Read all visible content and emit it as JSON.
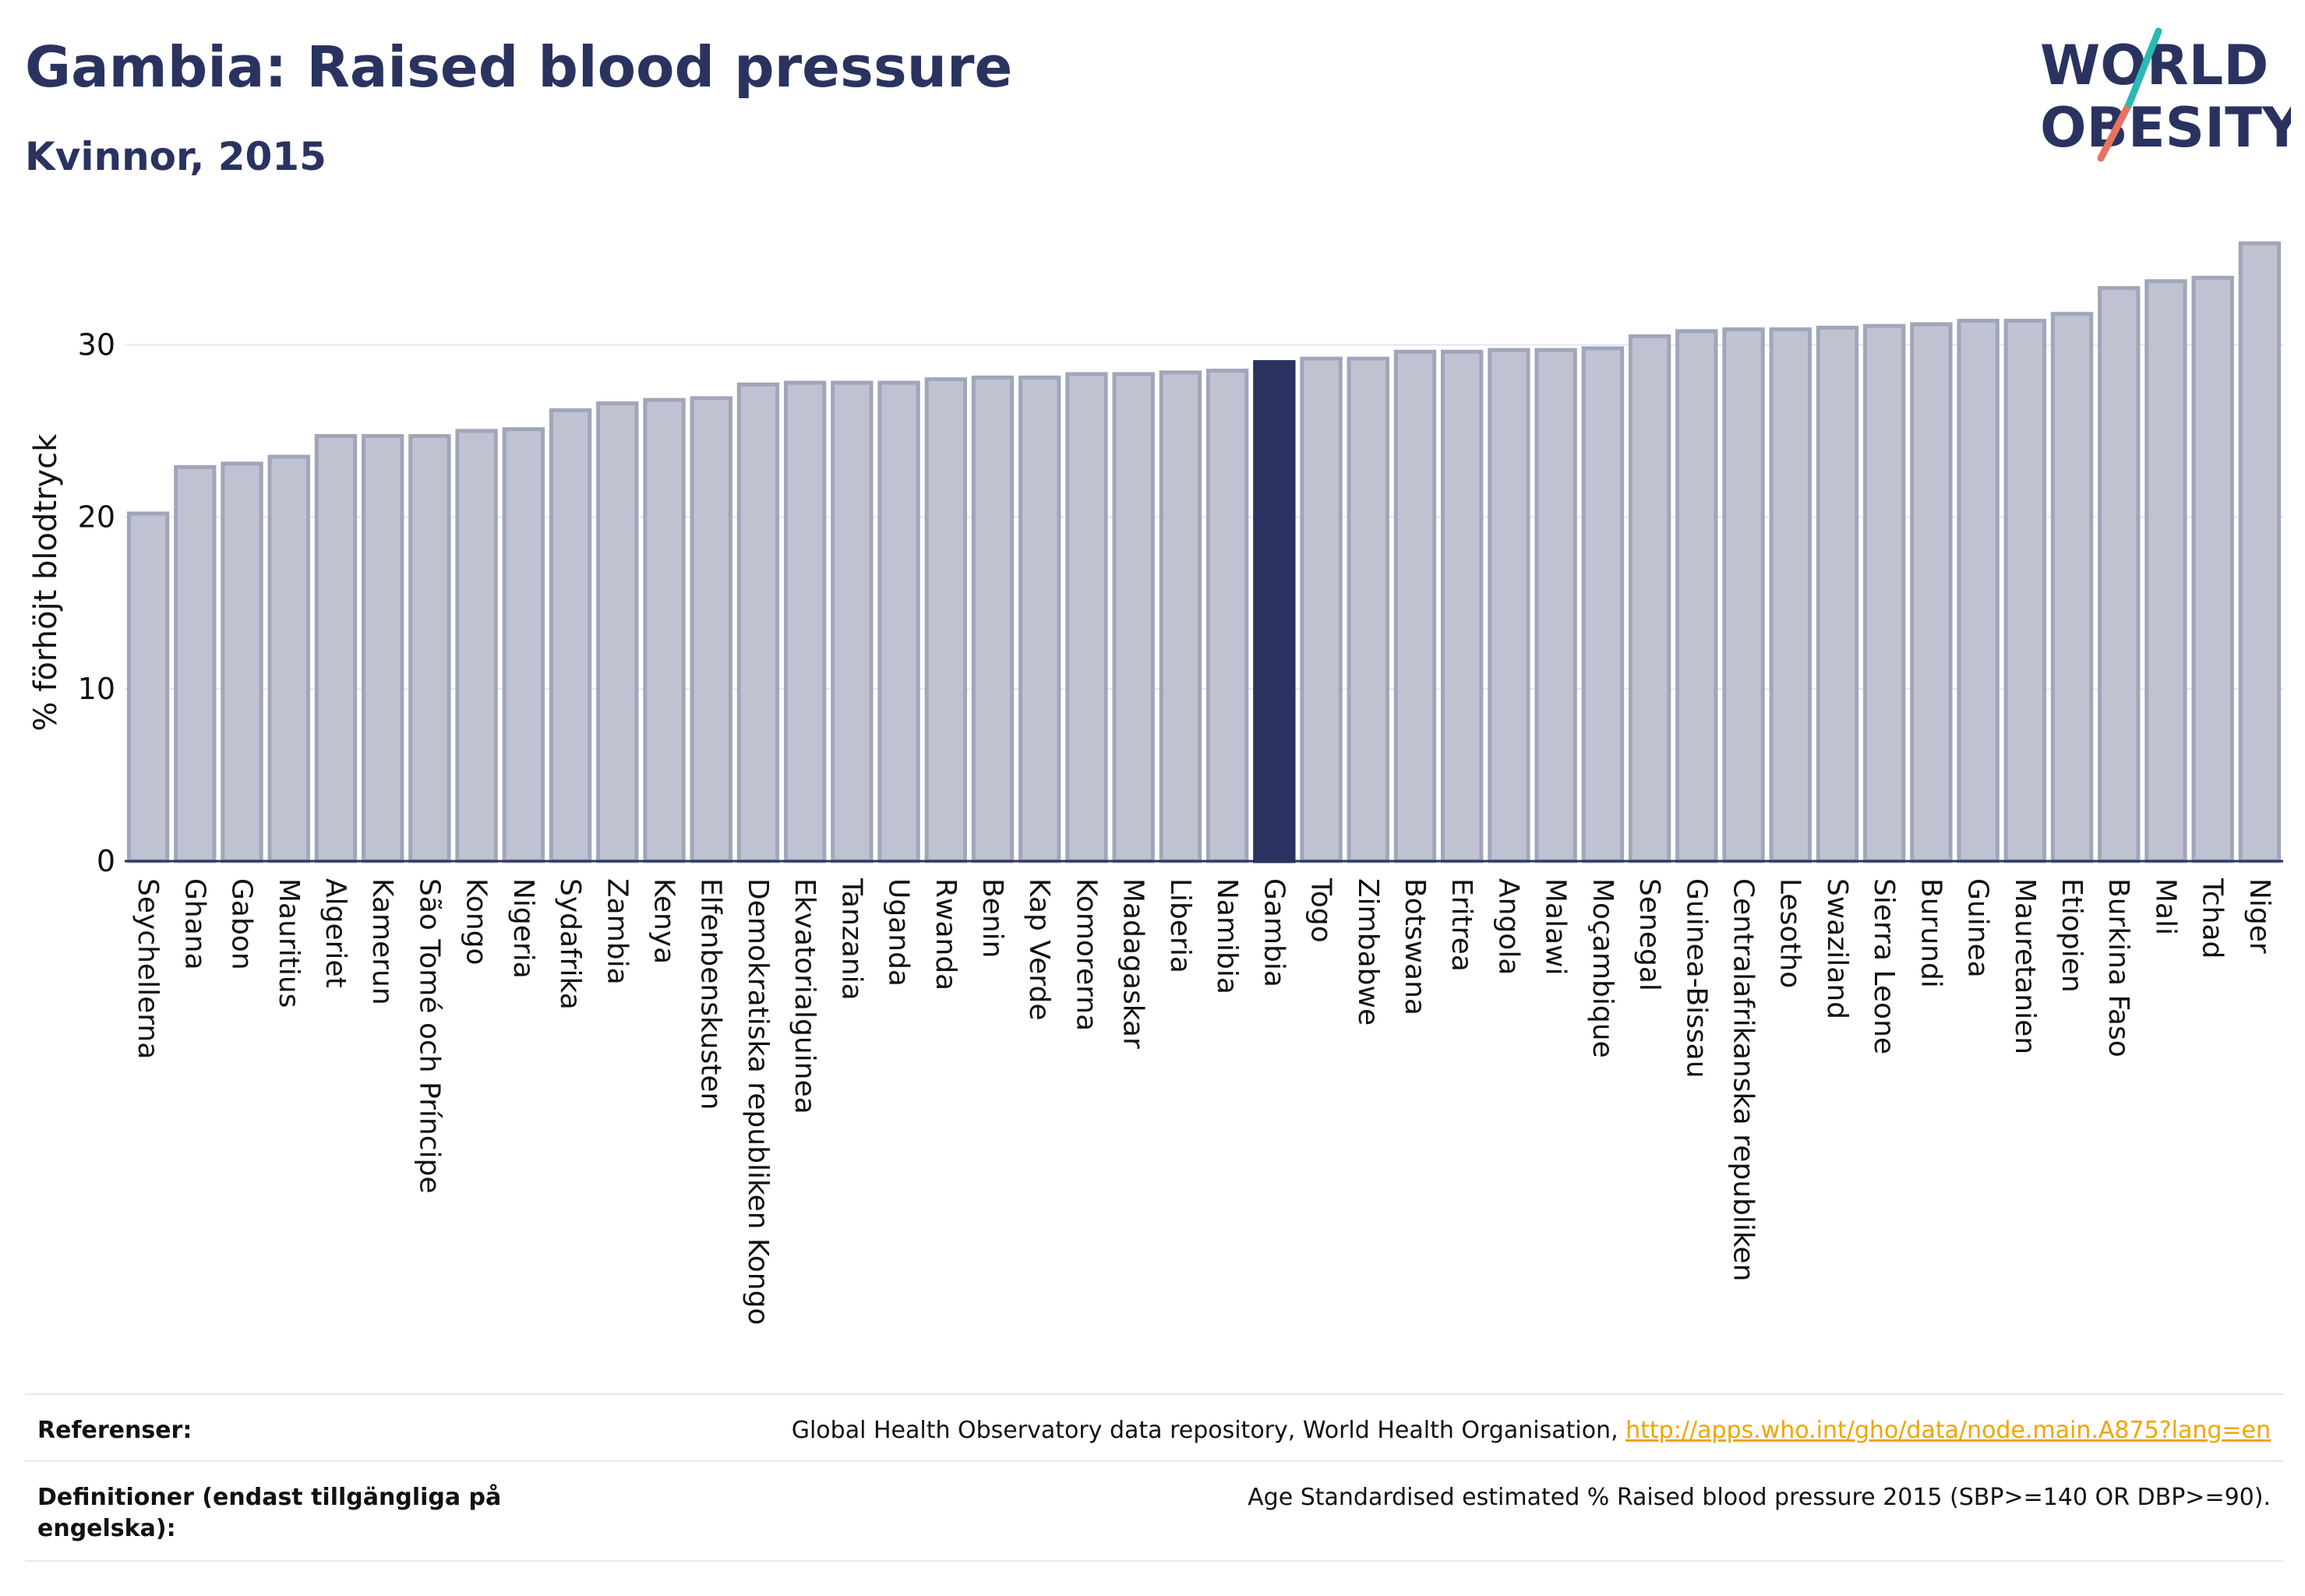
{
  "header": {
    "title": "Gambia: Raised blood pressure",
    "subtitle": "Kvinnor, 2015"
  },
  "logo": {
    "line1": "WORLD",
    "line2": "OBESITY"
  },
  "colors": {
    "bar": "#bfc3d1",
    "bar_stroke": "#a0a6ba",
    "highlight": "#2a3360",
    "axis": "#2a3360",
    "grid": "#e4e7ef",
    "link": "#f0a500"
  },
  "chart_data": {
    "type": "bar",
    "title": "Gambia: Raised blood pressure",
    "subtitle": "Kvinnor, 2015",
    "ylabel": "% förhöjt blodtryck",
    "xlabel": "",
    "ylim": [
      0,
      36
    ],
    "yticks": [
      0,
      10,
      20,
      30
    ],
    "grid": true,
    "highlight": "Gambia",
    "categories": [
      "Seychellerna",
      "Ghana",
      "Gabon",
      "Mauritius",
      "Algeriet",
      "Kamerun",
      "São Tomé och Príncipe",
      "Kongo",
      "Nigeria",
      "Sydafrika",
      "Zambia",
      "Kenya",
      "Elfenbenskusten",
      "Demokratiska republiken Kongo",
      "Ekvatorialguinea",
      "Tanzania",
      "Uganda",
      "Rwanda",
      "Benin",
      "Kap Verde",
      "Komorerna",
      "Madagaskar",
      "Liberia",
      "Namibia",
      "Gambia",
      "Togo",
      "Zimbabwe",
      "Botswana",
      "Eritrea",
      "Angola",
      "Malawi",
      "Moçambique",
      "Senegal",
      "Guinea-Bissau",
      "Centralafrikanska republiken",
      "Lesotho",
      "Swaziland",
      "Sierra Leone",
      "Burundi",
      "Guinea",
      "Mauretanien",
      "Etiopien",
      "Burkina Faso",
      "Mali",
      "Tchad",
      "Niger"
    ],
    "values": [
      20.2,
      22.9,
      23.1,
      23.5,
      24.7,
      24.7,
      24.7,
      25.0,
      25.1,
      26.2,
      26.6,
      26.8,
      26.9,
      27.7,
      27.8,
      27.8,
      27.8,
      28.0,
      28.1,
      28.1,
      28.3,
      28.3,
      28.4,
      28.5,
      29.0,
      29.2,
      29.2,
      29.6,
      29.6,
      29.7,
      29.7,
      29.8,
      30.5,
      30.8,
      30.9,
      30.9,
      31.0,
      31.1,
      31.2,
      31.4,
      31.4,
      31.8,
      33.3,
      33.7,
      33.9,
      35.9
    ]
  },
  "footer": {
    "references_label": "Referenser:",
    "references_text": "Global Health Observatory data repository, World Health Organisation, ",
    "references_link": "http://apps.who.int/gho/data/node.main.A875?lang=en",
    "definitions_label": "Definitioner (endast tillgängliga på engelska):",
    "definitions_text": "Age Standardised estimated % Raised blood pressure 2015 (SBP>=140 OR DBP>=90)."
  }
}
